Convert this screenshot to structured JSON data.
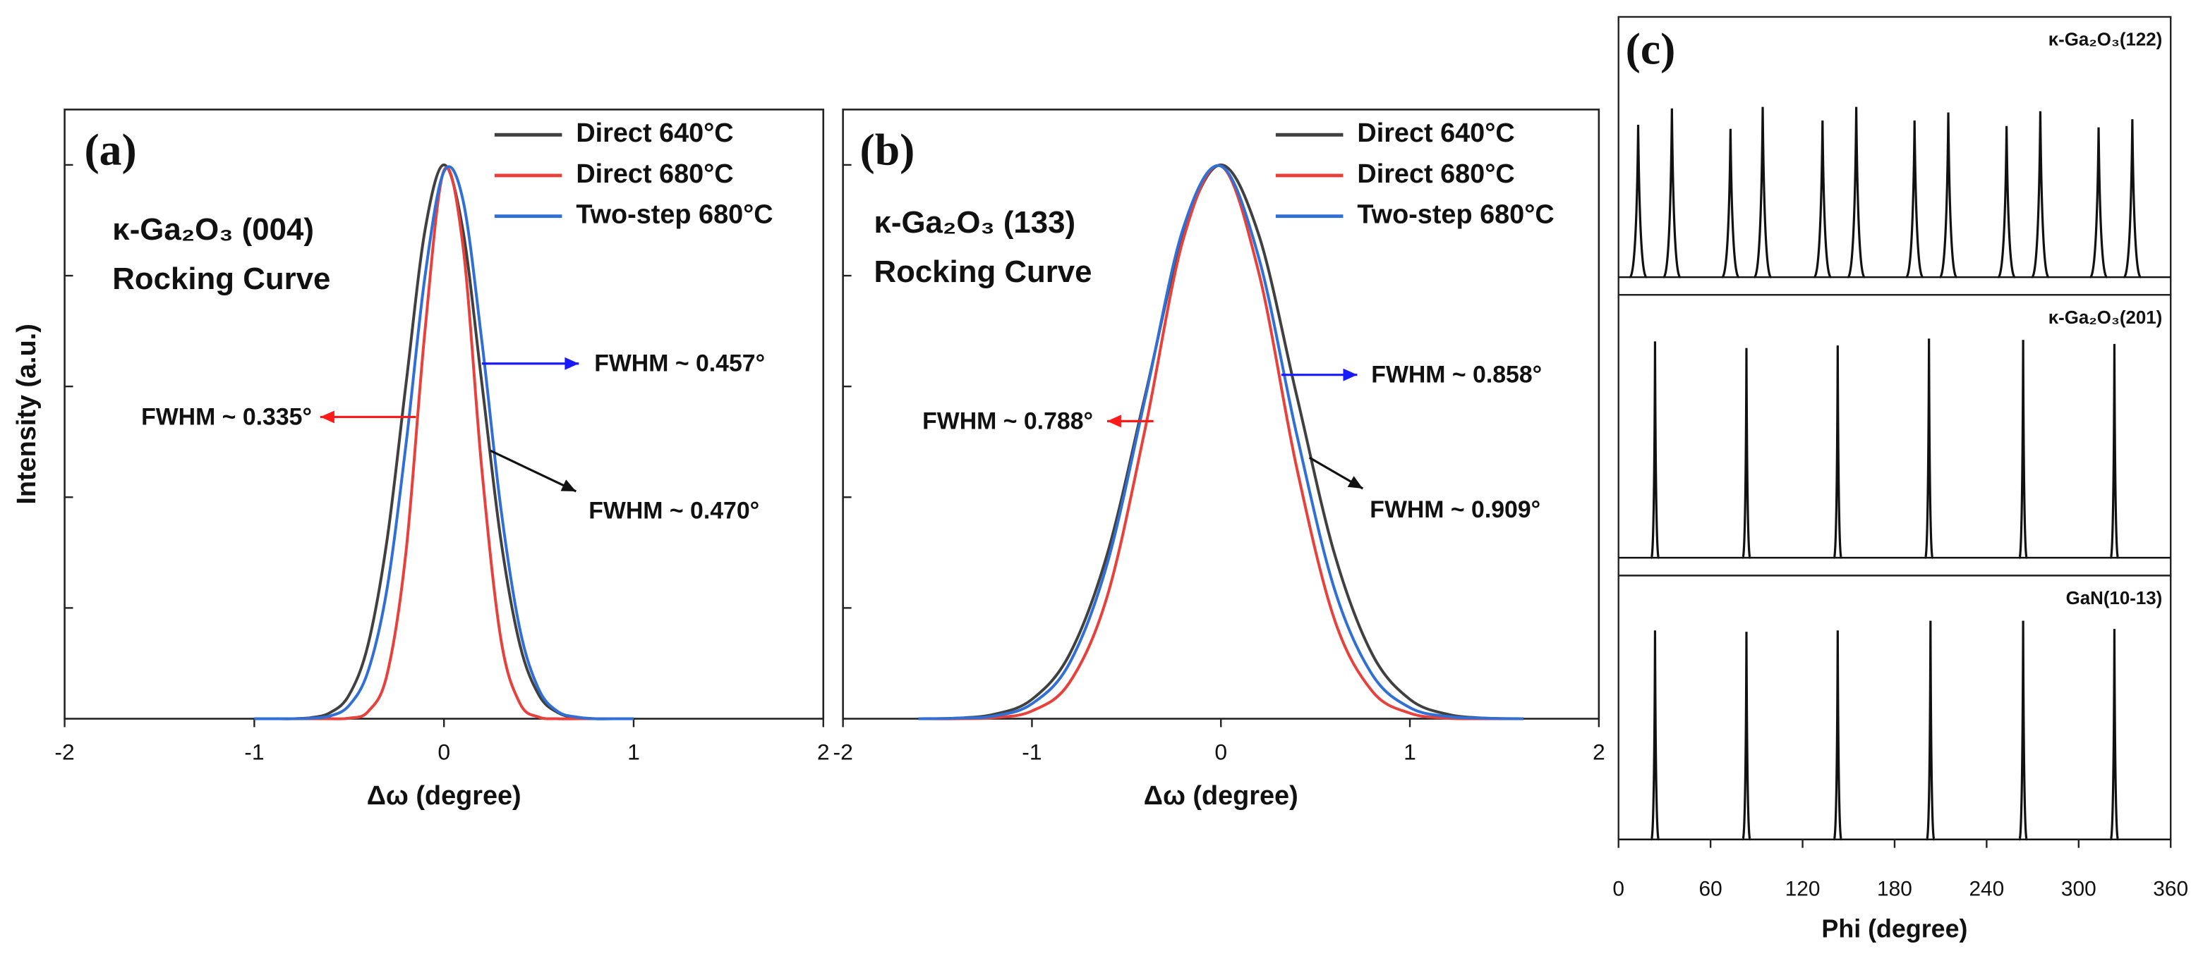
{
  "chart_data": [
    {
      "type": "line",
      "label": "(a)",
      "title": "κ-Ga₂O₃ (004)",
      "subtitle": "Rocking Curve",
      "xlabel": "Δω (degree)",
      "ylabel": "Intensity (a.u.)",
      "xlim": [
        -2,
        2
      ],
      "xticks": [
        -2,
        -1,
        0,
        1,
        2
      ],
      "ylim": [
        0,
        1.1
      ],
      "yticks": [
        0.2,
        0.4,
        0.6,
        0.8,
        1.0
      ],
      "x": [
        -1,
        -0.9,
        -0.8,
        -0.7,
        -0.6,
        -0.5,
        -0.4,
        -0.3,
        -0.2,
        -0.1,
        0,
        0.1,
        0.2,
        0.3,
        0.4,
        0.5,
        0.6,
        0.7,
        0.8,
        0.9,
        1
      ],
      "series": [
        {
          "name": "Direct 640°C",
          "color": "#404040",
          "values": [
            0,
            0,
            0,
            0.002,
            0.011,
            0.043,
            0.134,
            0.323,
            0.605,
            0.882,
            1,
            0.882,
            0.605,
            0.323,
            0.134,
            0.043,
            0.011,
            0.002,
            0,
            0,
            0
          ]
        },
        {
          "name": "Direct 680°C",
          "color": "#e8413c",
          "values": [
            0,
            0,
            0,
            0,
            0,
            0.001,
            0.013,
            0.08,
            0.302,
            0.701,
            0.99,
            0.854,
            0.449,
            0.144,
            0.028,
            0.003,
            0,
            0,
            0,
            0,
            0
          ]
        },
        {
          "name": "Two-step 680°C",
          "color": "#2f6fd6",
          "values": [
            0,
            0,
            0,
            0.001,
            0.005,
            0.024,
            0.086,
            0.235,
            0.496,
            0.799,
            0.988,
            0.937,
            0.681,
            0.38,
            0.162,
            0.053,
            0.013,
            0.003,
            0,
            0,
            0
          ]
        }
      ],
      "annotations": [
        {
          "text": "FWHM ~ 0.457°",
          "color": "#1a1aff"
        },
        {
          "text": "FWHM ~ 0.335°",
          "color": "#ff1a1a"
        },
        {
          "text": "FWHM ~ 0.470°",
          "color": "#111111"
        }
      ]
    },
    {
      "type": "line",
      "label": "(b)",
      "title": "κ-Ga₂O₃ (133)",
      "subtitle": "Rocking Curve",
      "xlabel": "Δω (degree)",
      "xlim": [
        -2,
        2
      ],
      "xticks": [
        -2,
        -1,
        0,
        1,
        2
      ],
      "ylim": [
        0,
        1.1
      ],
      "yticks": [
        0.2,
        0.4,
        0.6,
        0.8,
        1.0
      ],
      "x": [
        -1.6,
        -1.4,
        -1.2,
        -1.0,
        -0.8,
        -0.6,
        -0.4,
        -0.2,
        0,
        0.2,
        0.4,
        0.6,
        0.8,
        1.0,
        1.2,
        1.4,
        1.6
      ],
      "series": [
        {
          "name": "Direct 640°C",
          "color": "#404040",
          "values": [
            0,
            0.001,
            0.008,
            0.035,
            0.117,
            0.299,
            0.585,
            0.874,
            1,
            0.874,
            0.585,
            0.299,
            0.117,
            0.035,
            0.008,
            0.001,
            0
          ]
        },
        {
          "name": "Direct 680°C",
          "color": "#e8413c",
          "values": [
            0,
            0,
            0.002,
            0.014,
            0.066,
            0.223,
            0.525,
            0.865,
            0.998,
            0.806,
            0.455,
            0.18,
            0.05,
            0.01,
            0.001,
            0,
            0
          ]
        },
        {
          "name": "Two-step 680°C",
          "color": "#2f6fd6",
          "values": [
            0,
            0.001,
            0.005,
            0.027,
            0.101,
            0.282,
            0.58,
            0.885,
            0.998,
            0.833,
            0.515,
            0.235,
            0.08,
            0.02,
            0.004,
            0.001,
            0
          ]
        }
      ],
      "annotations": [
        {
          "text": "FWHM ~ 0.858°",
          "color": "#1a1aff"
        },
        {
          "text": "FWHM ~ 0.788°",
          "color": "#ff1a1a"
        },
        {
          "text": "FWHM ~ 0.909°",
          "color": "#111111"
        }
      ]
    },
    {
      "type": "stem",
      "label": "(c)",
      "xlabel": "Phi (degree)",
      "xlim": [
        0,
        360
      ],
      "xticks": [
        0,
        60,
        120,
        180,
        240,
        300,
        360
      ],
      "color": "#111111",
      "panels": [
        {
          "name": "κ-Ga₂O₃(122)",
          "ylim": [
            -0.07,
            1
          ],
          "x": [
            12.8,
            34.8,
            73,
            94,
            133,
            155,
            193,
            215,
            253,
            275,
            313,
            335
          ],
          "values": [
            0.605,
            0.67,
            0.589,
            0.676,
            0.622,
            0.676,
            0.622,
            0.654,
            0.6,
            0.659,
            0.595,
            0.627
          ]
        },
        {
          "name": "κ-Ga₂O₃(201)",
          "ylim": [
            -0.07,
            1
          ],
          "x": [
            23.8,
            83.4,
            142.9,
            202.4,
            263.8,
            323.3
          ],
          "values": [
            0.85,
            0.824,
            0.834,
            0.861,
            0.856,
            0.84
          ]
        },
        {
          "name": "GaN(10-13)",
          "ylim": [
            0,
            1
          ],
          "x": [
            23.8,
            83.4,
            142.9,
            203.4,
            263.8,
            323.3
          ],
          "values": [
            0.818,
            0.813,
            0.818,
            0.856,
            0.856,
            0.824
          ]
        }
      ]
    }
  ]
}
